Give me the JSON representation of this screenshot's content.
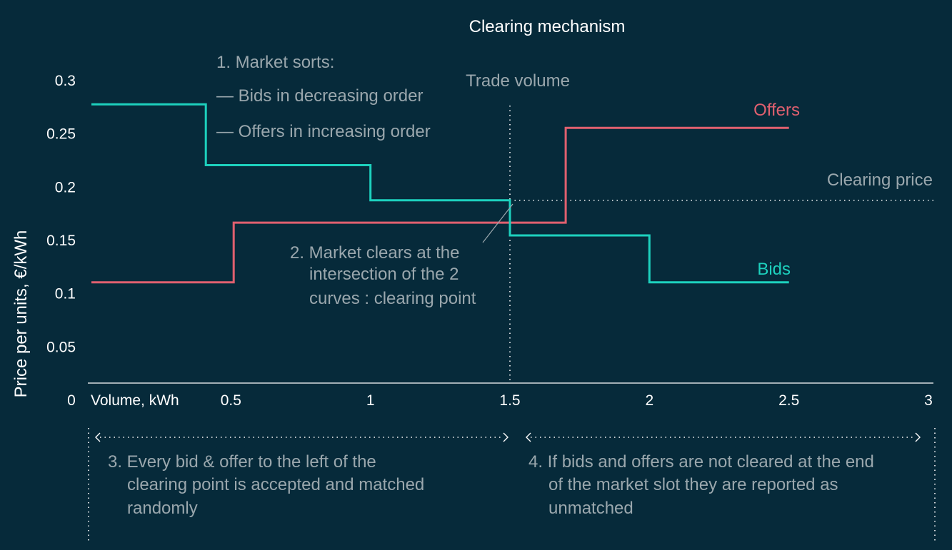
{
  "chart_data": {
    "type": "line",
    "title": "Clearing mechanism",
    "xlabel": "Volume, kWh",
    "ylabel": "Price per units, €/kWh",
    "xlim": [
      0,
      3
    ],
    "ylim": [
      0,
      0.3
    ],
    "x_ticks": [
      "0.5",
      "1",
      "1.5",
      "2",
      "2.5",
      "3"
    ],
    "y_ticks": [
      "0.05",
      "0.1",
      "0.15",
      "0.2",
      "0.25",
      "0.3"
    ],
    "origin_label": "0",
    "grid": false,
    "series": [
      {
        "name": "Bids",
        "color": "#1dd1be",
        "step_points": [
          [
            0,
            0.277
          ],
          [
            0.41,
            0.277
          ],
          [
            0.41,
            0.22
          ],
          [
            1.0,
            0.22
          ],
          [
            1.0,
            0.187
          ],
          [
            1.5,
            0.187
          ],
          [
            1.5,
            0.154
          ],
          [
            2.0,
            0.154
          ],
          [
            2.0,
            0.11
          ],
          [
            2.5,
            0.11
          ]
        ]
      },
      {
        "name": "Offers",
        "color": "#e0606f",
        "step_points": [
          [
            0,
            0.11
          ],
          [
            0.51,
            0.11
          ],
          [
            0.51,
            0.166
          ],
          [
            1.7,
            0.166
          ],
          [
            1.7,
            0.255
          ],
          [
            2.5,
            0.255
          ]
        ]
      }
    ],
    "clearing_point": {
      "x": 1.5,
      "y": 0.187
    },
    "reference_lines": {
      "trade_volume_label": "Trade volume",
      "clearing_price_label": "Clearing price"
    },
    "annotations": {
      "sort": [
        "1. Market sorts:",
        "— Bids in decreasing order",
        "— Offers in increasing order"
      ],
      "clear": [
        "2. Market clears at the",
        "intersection of the 2",
        "curves : clearing point"
      ],
      "left": [
        "3. Every bid & offer to the left of the",
        "clearing point is accepted and matched",
        "randomly"
      ],
      "right": [
        "4. If bids and offers are not cleared at the end",
        "of the market slot they are reported as",
        "unmatched"
      ]
    }
  }
}
